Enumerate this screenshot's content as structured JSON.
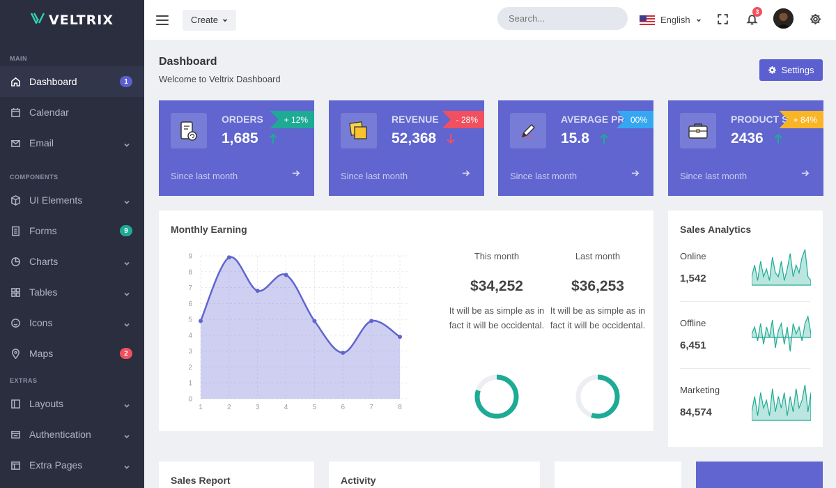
{
  "brand": {
    "name": "VELTRIX"
  },
  "sidebar": {
    "sections": [
      {
        "title": "MAIN"
      },
      {
        "title": "COMPONENTS"
      },
      {
        "title": "EXTRAS"
      }
    ],
    "items": [
      {
        "label": "Dashboard",
        "icon": "home-icon",
        "badge": "1",
        "badge_color": "#5b5fcf"
      },
      {
        "label": "Calendar",
        "icon": "calendar-icon"
      },
      {
        "label": "Email",
        "icon": "mail-icon"
      },
      {
        "label": "UI Elements",
        "icon": "cube-icon"
      },
      {
        "label": "Forms",
        "icon": "form-icon",
        "badge": "9",
        "badge_color": "#1eab95"
      },
      {
        "label": "Charts",
        "icon": "pie-icon"
      },
      {
        "label": "Tables",
        "icon": "grid-icon"
      },
      {
        "label": "Icons",
        "icon": "smile-icon"
      },
      {
        "label": "Maps",
        "icon": "pin-icon",
        "badge": "2",
        "badge_color": "#f0505f"
      },
      {
        "label": "Layouts",
        "icon": "layout-icon"
      },
      {
        "label": "Authentication",
        "icon": "lock-icon"
      },
      {
        "label": "Extra Pages",
        "icon": "pages-icon"
      }
    ]
  },
  "topbar": {
    "create_label": "Create",
    "search_placeholder": "Search...",
    "language": "English",
    "notification_count": "3"
  },
  "page": {
    "title": "Dashboard",
    "subtitle": "Welcome to Veltrix Dashboard",
    "settings_label": "Settings"
  },
  "stats": [
    {
      "title": "ORDERS",
      "value": "1,685",
      "change": "+ 12%",
      "trend": "up",
      "ribbon_color": "#1eab95",
      "since": "Since last month"
    },
    {
      "title": "REVENUE",
      "value": "52,368",
      "change": "- 28%",
      "trend": "down",
      "ribbon_color": "#f0505f",
      "since": "Since last month"
    },
    {
      "title": "AVERAGE PRICE",
      "value": "15.8",
      "change": "00%",
      "trend": "up",
      "ribbon_color": "#35a7f0",
      "since": "Since last month"
    },
    {
      "title": "PRODUCT SOLD",
      "value": "2436",
      "change": "+ 84%",
      "trend": "up",
      "ribbon_color": "#f9b526",
      "since": "Since last month"
    }
  ],
  "monthly_earning": {
    "title": "Monthly Earning",
    "this_month": {
      "label": "This month",
      "amount": "$34,252",
      "desc": "It will be as simple as in fact it will be occidental.",
      "progress": 0.8
    },
    "last_month": {
      "label": "Last month",
      "amount": "$36,253",
      "desc": "It will be as simple as in fact it will be occidental.",
      "progress": 0.55
    }
  },
  "chart_data": {
    "type": "area",
    "x": [
      1,
      2,
      3,
      4,
      5,
      6,
      7,
      8
    ],
    "values": [
      4.9,
      8.9,
      6.8,
      7.8,
      4.9,
      2.9,
      4.9,
      3.9
    ],
    "ylim": [
      0,
      9
    ],
    "yticks": [
      0,
      1,
      2,
      3,
      4,
      5,
      6,
      7,
      8,
      9
    ],
    "xlabel": "",
    "ylabel": "",
    "grid": true,
    "color": "#6065cf"
  },
  "sales_analytics": {
    "title": "Sales Analytics",
    "rows": [
      {
        "label": "Online",
        "value": "1,542",
        "spark": [
          2,
          5,
          1,
          6,
          2,
          4,
          1,
          7,
          3,
          2,
          6,
          1,
          4,
          8,
          2,
          5,
          3,
          7,
          9,
          2,
          1
        ],
        "baseline": 0
      },
      {
        "label": "Offline",
        "value": "6,451",
        "spark": [
          1,
          3,
          -1,
          4,
          -2,
          3,
          0,
          5,
          -3,
          2,
          4,
          -2,
          3,
          -4,
          4,
          1,
          3,
          -1,
          4,
          6,
          1
        ],
        "baseline": 0.5
      },
      {
        "label": "Marketing",
        "value": "84,574",
        "spark": [
          2,
          6,
          1,
          7,
          3,
          5,
          1,
          8,
          2,
          6,
          3,
          7,
          1,
          6,
          2,
          8,
          3,
          5,
          9,
          2,
          7
        ],
        "baseline": 0
      }
    ]
  },
  "bottom_cards": {
    "sales_report": "Sales Report",
    "activity": "Activity"
  }
}
